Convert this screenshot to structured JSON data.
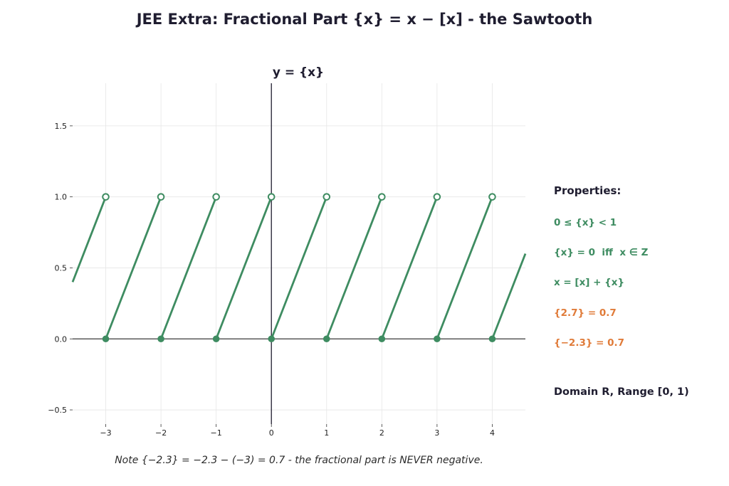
{
  "title": "JEE Extra:  Fractional Part  {x} = x − [x]  -  the Sawtooth",
  "chart_data": {
    "type": "line",
    "title": "y = {x}",
    "xlabel": "",
    "ylabel": "",
    "xlim": [
      -3.6,
      4.6
    ],
    "ylim": [
      -0.6,
      1.8
    ],
    "xticks": [
      -3,
      -2,
      -1,
      0,
      1,
      2,
      3,
      4
    ],
    "xtick_labels": [
      "−3",
      "−2",
      "−1",
      "0",
      "1",
      "2",
      "3",
      "4"
    ],
    "yticks": [
      -0.5,
      0.0,
      0.5,
      1.0,
      1.5
    ],
    "ytick_labels": [
      "−0.5",
      "0.0",
      "0.5",
      "1.0",
      "1.5"
    ],
    "grid": true,
    "series": [
      {
        "color": "#3e8c61",
        "segments": [
          {
            "x": [
              -3.6,
              -3.0
            ],
            "y": [
              0.4,
              1.0
            ]
          },
          {
            "x": [
              -3.0,
              -2.0
            ],
            "y": [
              0.0,
              1.0
            ]
          },
          {
            "x": [
              -2.0,
              -1.0
            ],
            "y": [
              0.0,
              1.0
            ]
          },
          {
            "x": [
              -1.0,
              0.0
            ],
            "y": [
              0.0,
              1.0
            ]
          },
          {
            "x": [
              0.0,
              1.0
            ],
            "y": [
              0.0,
              1.0
            ]
          },
          {
            "x": [
              1.0,
              2.0
            ],
            "y": [
              0.0,
              1.0
            ]
          },
          {
            "x": [
              2.0,
              3.0
            ],
            "y": [
              0.0,
              1.0
            ]
          },
          {
            "x": [
              3.0,
              4.0
            ],
            "y": [
              0.0,
              1.0
            ]
          },
          {
            "x": [
              4.0,
              4.6
            ],
            "y": [
              0.0,
              0.6
            ]
          }
        ],
        "closed_points": [
          [
            -3,
            0
          ],
          [
            -2,
            0
          ],
          [
            -1,
            0
          ],
          [
            0,
            0
          ],
          [
            1,
            0
          ],
          [
            2,
            0
          ],
          [
            3,
            0
          ],
          [
            4,
            0
          ]
        ],
        "open_points": [
          [
            -3,
            1
          ],
          [
            -2,
            1
          ],
          [
            -1,
            1
          ],
          [
            0,
            1
          ],
          [
            1,
            1
          ],
          [
            2,
            1
          ],
          [
            3,
            1
          ],
          [
            4,
            1
          ]
        ]
      }
    ]
  },
  "properties": {
    "heading": "Properties:",
    "items": [
      {
        "text": "0 ≤ {x} < 1",
        "tone": "green"
      },
      {
        "text": "{x} = 0  iff  x ∈ Z",
        "tone": "green"
      },
      {
        "text": "x = [x] + {x}",
        "tone": "green"
      },
      {
        "text": "{2.7} = 0.7",
        "tone": "orange"
      },
      {
        "text": "{−2.3} = 0.7",
        "tone": "orange"
      }
    ],
    "summary": "Domain R, Range [0, 1)"
  },
  "note": "Note {−2.3} = −2.3 − (−3) = 0.7 - the fractional part is NEVER negative.",
  "colors": {
    "line": "#3e8c61",
    "accent_orange": "#e07b39",
    "text_dark": "#1f1d30",
    "grid": "#e6e6e6",
    "axis": "#1f1d30"
  }
}
